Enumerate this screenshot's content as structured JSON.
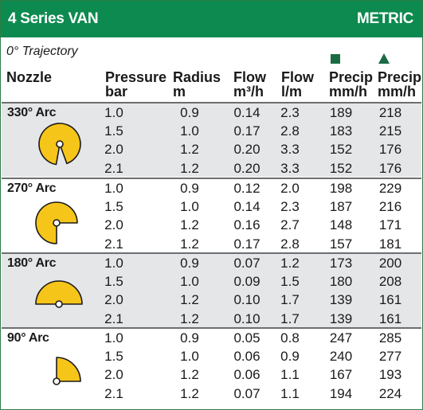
{
  "header": {
    "title": "4 Series VAN",
    "metric": "METRIC"
  },
  "trajectory": "0° Trajectory",
  "columns": {
    "nozzle": "Nozzle",
    "pressure": [
      "Pressure",
      "bar"
    ],
    "radius": [
      "Radius",
      "m"
    ],
    "flow_m3h": [
      "Flow",
      "m³/h"
    ],
    "flow_lm": [
      "Flow",
      "l/m"
    ],
    "precip_sq": [
      "Precip",
      "mm/h"
    ],
    "precip_tri": [
      "Precip",
      "mm/h"
    ]
  },
  "legend_icons": {
    "square": "square-spacing-icon",
    "triangle": "triangle-spacing-icon"
  },
  "colors": {
    "header": "#0d8a4f",
    "arc_fill": "#f6c51a",
    "shaded_row": "#e5e6e8",
    "icon": "#1a6b43"
  },
  "sections": [
    {
      "label": "330° Arc",
      "arc_deg": 330,
      "icon": "330-arc-icon",
      "rows": [
        {
          "pressure": "1.0",
          "radius": "0.9",
          "flow_m3h": "0.14",
          "flow_lm": "2.3",
          "precip_sq": "189",
          "precip_tri": "218"
        },
        {
          "pressure": "1.5",
          "radius": "1.0",
          "flow_m3h": "0.17",
          "flow_lm": "2.8",
          "precip_sq": "183",
          "precip_tri": "215"
        },
        {
          "pressure": "2.0",
          "radius": "1.2",
          "flow_m3h": "0.20",
          "flow_lm": "3.3",
          "precip_sq": "152",
          "precip_tri": "176"
        },
        {
          "pressure": "2.1",
          "radius": "1.2",
          "flow_m3h": "0.20",
          "flow_lm": "3.3",
          "precip_sq": "152",
          "precip_tri": "176"
        }
      ]
    },
    {
      "label": "270° Arc",
      "arc_deg": 270,
      "icon": "270-arc-icon",
      "rows": [
        {
          "pressure": "1.0",
          "radius": "0.9",
          "flow_m3h": "0.12",
          "flow_lm": "2.0",
          "precip_sq": "198",
          "precip_tri": "229"
        },
        {
          "pressure": "1.5",
          "radius": "1.0",
          "flow_m3h": "0.14",
          "flow_lm": "2.3",
          "precip_sq": "187",
          "precip_tri": "216"
        },
        {
          "pressure": "2.0",
          "radius": "1.2",
          "flow_m3h": "0.16",
          "flow_lm": "2.7",
          "precip_sq": "148",
          "precip_tri": "171"
        },
        {
          "pressure": "2.1",
          "radius": "1.2",
          "flow_m3h": "0.17",
          "flow_lm": "2.8",
          "precip_sq": "157",
          "precip_tri": "181"
        }
      ]
    },
    {
      "label": "180° Arc",
      "arc_deg": 180,
      "icon": "180-arc-icon",
      "rows": [
        {
          "pressure": "1.0",
          "radius": "0.9",
          "flow_m3h": "0.07",
          "flow_lm": "1.2",
          "precip_sq": "173",
          "precip_tri": "200"
        },
        {
          "pressure": "1.5",
          "radius": "1.0",
          "flow_m3h": "0.09",
          "flow_lm": "1.5",
          "precip_sq": "180",
          "precip_tri": "208"
        },
        {
          "pressure": "2.0",
          "radius": "1.2",
          "flow_m3h": "0.10",
          "flow_lm": "1.7",
          "precip_sq": "139",
          "precip_tri": "161"
        },
        {
          "pressure": "2.1",
          "radius": "1.2",
          "flow_m3h": "0.10",
          "flow_lm": "1.7",
          "precip_sq": "139",
          "precip_tri": "161"
        }
      ]
    },
    {
      "label": "90° Arc",
      "arc_deg": 90,
      "icon": "90-arc-icon",
      "rows": [
        {
          "pressure": "1.0",
          "radius": "0.9",
          "flow_m3h": "0.05",
          "flow_lm": "0.8",
          "precip_sq": "247",
          "precip_tri": "285"
        },
        {
          "pressure": "1.5",
          "radius": "1.0",
          "flow_m3h": "0.06",
          "flow_lm": "0.9",
          "precip_sq": "240",
          "precip_tri": "277"
        },
        {
          "pressure": "2.0",
          "radius": "1.2",
          "flow_m3h": "0.06",
          "flow_lm": "1.1",
          "precip_sq": "167",
          "precip_tri": "193"
        },
        {
          "pressure": "2.1",
          "radius": "1.2",
          "flow_m3h": "0.07",
          "flow_lm": "1.1",
          "precip_sq": "194",
          "precip_tri": "224"
        }
      ]
    }
  ]
}
